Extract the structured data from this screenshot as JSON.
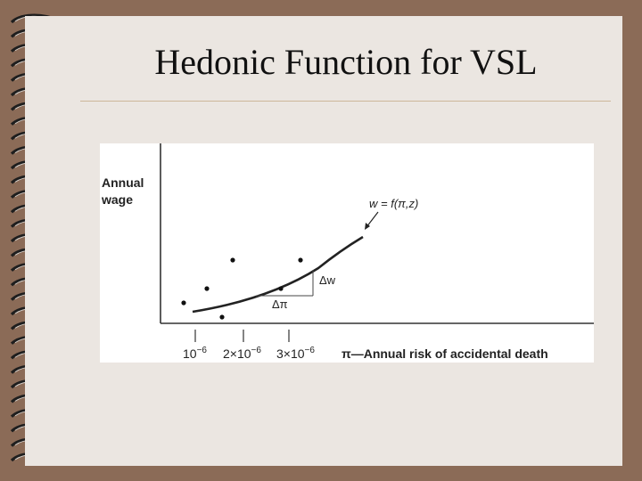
{
  "slide": {
    "title": "Hedonic Function for VSL"
  },
  "figure": {
    "y_axis_label_line1": "Annual",
    "y_axis_label_line2": "wage",
    "x_axis_label": "π—Annual risk of accidental death",
    "curve_label": "w = f(π,z)",
    "delta_w_label": "Δw",
    "delta_pi_label": "Δπ",
    "x_ticks": [
      {
        "base": "10",
        "exp": "−6"
      },
      {
        "base": "2×10",
        "exp": "−6"
      },
      {
        "base": "3×10",
        "exp": "−6"
      }
    ]
  },
  "colors": {
    "frame": "#8b6b57",
    "slide_bg": "#ebe6e1",
    "rule": "#cdb79a",
    "ink": "#222222"
  }
}
